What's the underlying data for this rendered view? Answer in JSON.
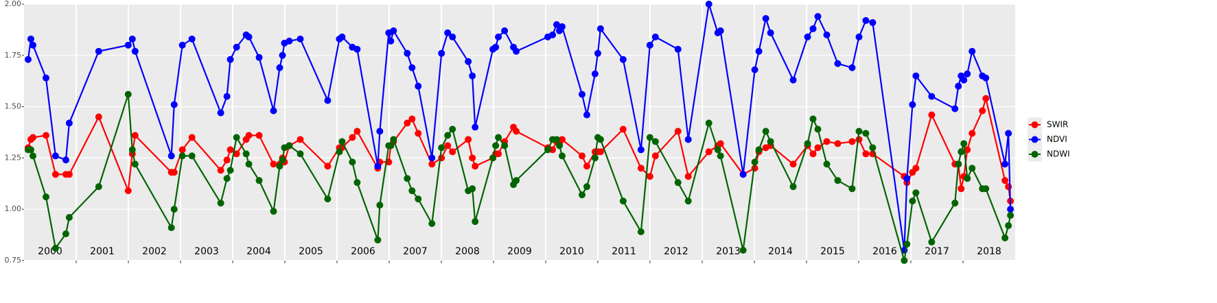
{
  "chart_data": {
    "type": "line",
    "x": [
      2000.079,
      2000.131,
      2000.171,
      2000.421,
      2000.604,
      2000.802,
      2000.867,
      2001.432,
      2001.997,
      2002.076,
      2002.129,
      2002.825,
      2002.878,
      2003.035,
      2003.219,
      2003.771,
      2003.89,
      2003.955,
      2004.074,
      2004.258,
      2004.31,
      2004.507,
      2004.783,
      2004.901,
      2004.954,
      2004.993,
      2005.085,
      2005.296,
      2005.821,
      2006.045,
      2006.097,
      2006.294,
      2006.386,
      2006.781,
      2006.82,
      2006.991,
      2007.03,
      2007.083,
      2007.346,
      2007.438,
      2007.556,
      2007.819,
      2008.003,
      2008.121,
      2008.213,
      2008.515,
      2008.594,
      2008.647,
      2008.988,
      2009.041,
      2009.093,
      2009.212,
      2009.382,
      2009.435,
      2010.04,
      2010.132,
      2010.21,
      2010.263,
      2010.315,
      2010.697,
      2010.789,
      2010.946,
      2010.999,
      2011.051,
      2011.485,
      2011.827,
      2011.998,
      2012.103,
      2012.536,
      2012.733,
      2013.128,
      2013.299,
      2013.351,
      2013.785,
      2014.008,
      2014.087,
      2014.219,
      2014.311,
      2014.744,
      2015.02,
      2015.125,
      2015.217,
      2015.388,
      2015.598,
      2015.874,
      2016.006,
      2016.137,
      2016.268,
      2016.873,
      2016.925,
      2017.031,
      2017.097,
      2017.399,
      2017.845,
      2017.911,
      2017.964,
      2018.016,
      2018.082,
      2018.174,
      2018.371,
      2018.437,
      2018.804,
      2018.87,
      2018.909
    ],
    "series": [
      {
        "name": "SWIR",
        "color": "#ff0000",
        "values": [
          1.3,
          1.34,
          1.35,
          1.36,
          1.17,
          1.17,
          1.17,
          1.45,
          1.09,
          1.27,
          1.36,
          1.18,
          1.18,
          1.29,
          1.35,
          1.19,
          1.24,
          1.29,
          1.27,
          1.34,
          1.36,
          1.36,
          1.22,
          1.22,
          1.25,
          1.23,
          1.31,
          1.34,
          1.21,
          1.3,
          1.3,
          1.35,
          1.38,
          1.2,
          1.23,
          1.23,
          1.31,
          1.33,
          1.42,
          1.44,
          1.37,
          1.22,
          1.25,
          1.31,
          1.28,
          1.34,
          1.25,
          1.21,
          1.25,
          1.27,
          1.27,
          1.33,
          1.4,
          1.38,
          1.3,
          1.29,
          1.33,
          1.32,
          1.34,
          1.26,
          1.21,
          1.28,
          1.28,
          1.28,
          1.39,
          1.2,
          1.16,
          1.26,
          1.38,
          1.16,
          1.28,
          1.31,
          1.32,
          1.17,
          1.2,
          1.28,
          1.3,
          1.31,
          1.22,
          1.31,
          1.27,
          1.3,
          1.33,
          1.32,
          1.33,
          1.34,
          1.27,
          1.27,
          1.16,
          1.13,
          1.18,
          1.2,
          1.46,
          1.22,
          1.22,
          1.1,
          1.16,
          1.29,
          1.37,
          1.48,
          1.54,
          1.14,
          1.11,
          1.04
        ]
      },
      {
        "name": "NDVI",
        "color": "#0000ff",
        "values": [
          1.73,
          1.83,
          1.8,
          1.64,
          1.26,
          1.24,
          1.42,
          1.77,
          1.8,
          1.83,
          1.77,
          1.26,
          1.51,
          1.8,
          1.83,
          1.47,
          1.55,
          1.73,
          1.79,
          1.85,
          1.84,
          1.74,
          1.48,
          1.69,
          1.75,
          1.81,
          1.82,
          1.83,
          1.53,
          1.83,
          1.84,
          1.79,
          1.78,
          1.21,
          1.38,
          1.86,
          1.82,
          1.87,
          1.76,
          1.69,
          1.6,
          1.25,
          1.76,
          1.86,
          1.84,
          1.72,
          1.65,
          1.4,
          1.78,
          1.79,
          1.84,
          1.87,
          1.79,
          1.77,
          1.84,
          1.85,
          1.9,
          1.87,
          1.89,
          1.56,
          1.46,
          1.66,
          1.76,
          1.88,
          1.73,
          1.29,
          1.8,
          1.84,
          1.78,
          1.34,
          2.0,
          1.86,
          1.87,
          1.17,
          1.68,
          1.77,
          1.93,
          1.86,
          1.63,
          1.84,
          1.88,
          1.94,
          1.85,
          1.71,
          1.69,
          1.84,
          1.92,
          1.91,
          0.8,
          1.15,
          1.51,
          1.65,
          1.55,
          1.49,
          1.6,
          1.65,
          1.63,
          1.66,
          1.77,
          1.65,
          1.64,
          1.22,
          1.37,
          1.0
        ]
      },
      {
        "name": "NDWI",
        "color": "#006400",
        "values": [
          1.29,
          1.29,
          1.26,
          1.06,
          0.81,
          0.88,
          0.96,
          1.11,
          1.56,
          1.29,
          1.22,
          0.91,
          1.0,
          1.26,
          1.26,
          1.03,
          1.15,
          1.19,
          1.35,
          1.27,
          1.22,
          1.14,
          0.99,
          1.21,
          1.24,
          1.3,
          1.31,
          1.27,
          1.05,
          1.28,
          1.33,
          1.23,
          1.13,
          0.85,
          1.02,
          1.31,
          1.31,
          1.34,
          1.15,
          1.09,
          1.05,
          0.93,
          1.3,
          1.36,
          1.39,
          1.09,
          1.1,
          0.94,
          1.25,
          1.31,
          1.35,
          1.31,
          1.12,
          1.14,
          1.29,
          1.34,
          1.34,
          1.31,
          1.26,
          1.07,
          1.11,
          1.25,
          1.35,
          1.34,
          1.04,
          0.89,
          1.35,
          1.33,
          1.13,
          1.04,
          1.42,
          1.29,
          1.26,
          0.8,
          1.23,
          1.29,
          1.38,
          1.33,
          1.11,
          1.32,
          1.44,
          1.39,
          1.22,
          1.14,
          1.1,
          1.38,
          1.37,
          1.3,
          0.75,
          0.83,
          1.04,
          1.08,
          0.84,
          1.03,
          1.22,
          1.28,
          1.32,
          1.15,
          1.2,
          1.1,
          1.1,
          0.86,
          0.92,
          0.97
        ]
      }
    ],
    "xlim": [
      2000,
      2019
    ],
    "xticks": [
      {
        "value": 2000.5,
        "label": "2000"
      },
      {
        "value": 2001.5,
        "label": "2001"
      },
      {
        "value": 2002.5,
        "label": "2002"
      },
      {
        "value": 2003.5,
        "label": "2003"
      },
      {
        "value": 2004.5,
        "label": "2004"
      },
      {
        "value": 2005.5,
        "label": "2005"
      },
      {
        "value": 2006.5,
        "label": "2006"
      },
      {
        "value": 2007.5,
        "label": "2007"
      },
      {
        "value": 2008.5,
        "label": "2008"
      },
      {
        "value": 2009.5,
        "label": "2009"
      },
      {
        "value": 2010.5,
        "label": "2010"
      },
      {
        "value": 2011.5,
        "label": "2011"
      },
      {
        "value": 2012.5,
        "label": "2012"
      },
      {
        "value": 2013.5,
        "label": "2013"
      },
      {
        "value": 2014.5,
        "label": "2014"
      },
      {
        "value": 2015.5,
        "label": "2015"
      },
      {
        "value": 2016.5,
        "label": "2016"
      },
      {
        "value": 2017.5,
        "label": "2017"
      },
      {
        "value": 2018.5,
        "label": "2018"
      }
    ],
    "xgrid": [
      2001,
      2002,
      2003,
      2004,
      2005,
      2006,
      2007,
      2008,
      2009,
      2010,
      2011,
      2012,
      2013,
      2014,
      2015,
      2016,
      2017,
      2018
    ],
    "ylim": [
      0.75,
      2.0
    ],
    "yticks": [
      0.75,
      {
        "value": 1.0,
        "label": "1.00"
      },
      1.25,
      {
        "value": 1.5,
        "label": "1.50"
      },
      1.75,
      {
        "value": 2.0,
        "label": "2.00"
      }
    ],
    "grid": true,
    "legend": "right"
  }
}
